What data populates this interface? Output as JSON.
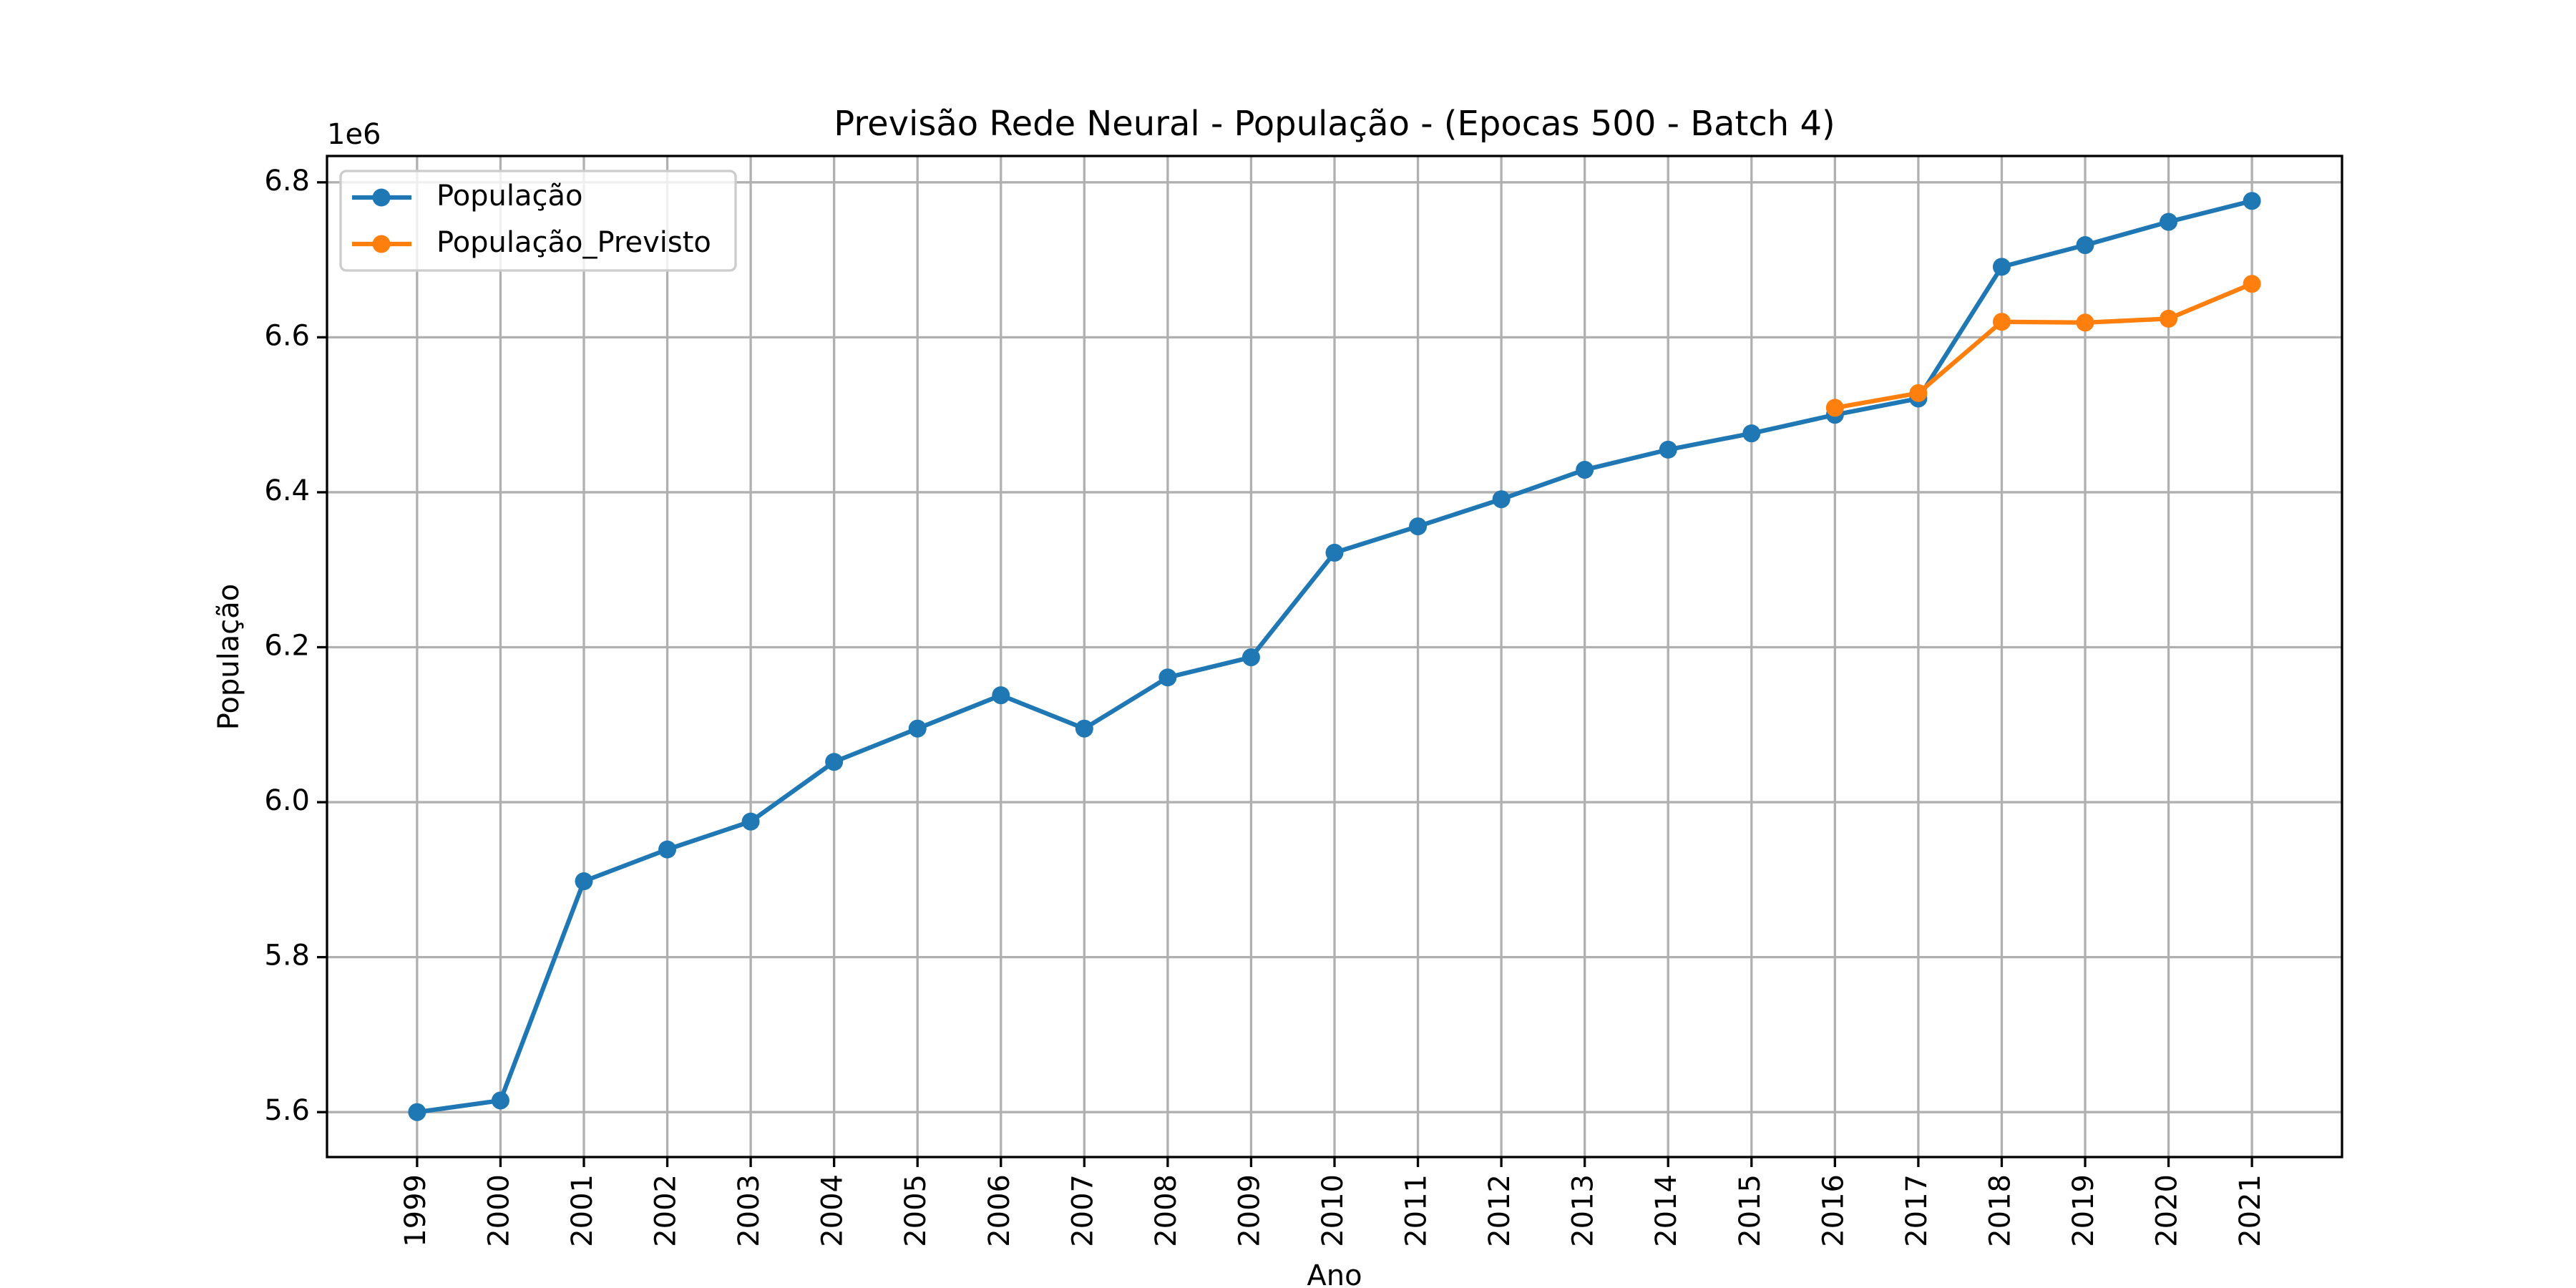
{
  "chart_data": {
    "type": "line",
    "title": "Previsão Rede Neural - População - (Epocas 500 - Batch 4)",
    "x_label": "Ano",
    "y_label": "População",
    "y_offset_label": "1e6",
    "x": [
      1999,
      2000,
      2001,
      2002,
      2003,
      2004,
      2005,
      2006,
      2007,
      2008,
      2009,
      2010,
      2011,
      2012,
      2013,
      2014,
      2015,
      2016,
      2017,
      2018,
      2019,
      2020,
      2021
    ],
    "series": [
      {
        "name": "População",
        "color": "#1f77b4",
        "values": [
          5.6,
          5.615,
          5.898,
          5.939,
          5.975,
          6.052,
          6.095,
          6.138,
          6.095,
          6.161,
          6.187,
          6.322,
          6.356,
          6.391,
          6.429,
          6.455,
          6.476,
          6.5,
          6.521,
          6.691,
          6.719,
          6.749,
          6.776
        ]
      },
      {
        "name": "População_Previsto",
        "color": "#ff7f0e",
        "values": [
          null,
          null,
          null,
          null,
          null,
          null,
          null,
          null,
          null,
          null,
          null,
          null,
          null,
          null,
          null,
          null,
          null,
          6.509,
          6.528,
          6.62,
          6.619,
          6.624,
          6.669
        ]
      }
    ],
    "xlim": [
      1997.92,
      2022.08
    ],
    "xticks": [
      1999,
      2000,
      2001,
      2002,
      2003,
      2004,
      2005,
      2006,
      2007,
      2008,
      2009,
      2010,
      2011,
      2012,
      2013,
      2014,
      2015,
      2016,
      2017,
      2018,
      2019,
      2020,
      2021
    ],
    "ylim": [
      5.542,
      6.834
    ],
    "yticks": [
      5.6,
      5.8,
      {
        "value": 6.0,
        "label": "6.0"
      },
      6.2,
      6.4,
      6.6,
      6.8
    ],
    "grid": true,
    "legend": "upper left"
  }
}
